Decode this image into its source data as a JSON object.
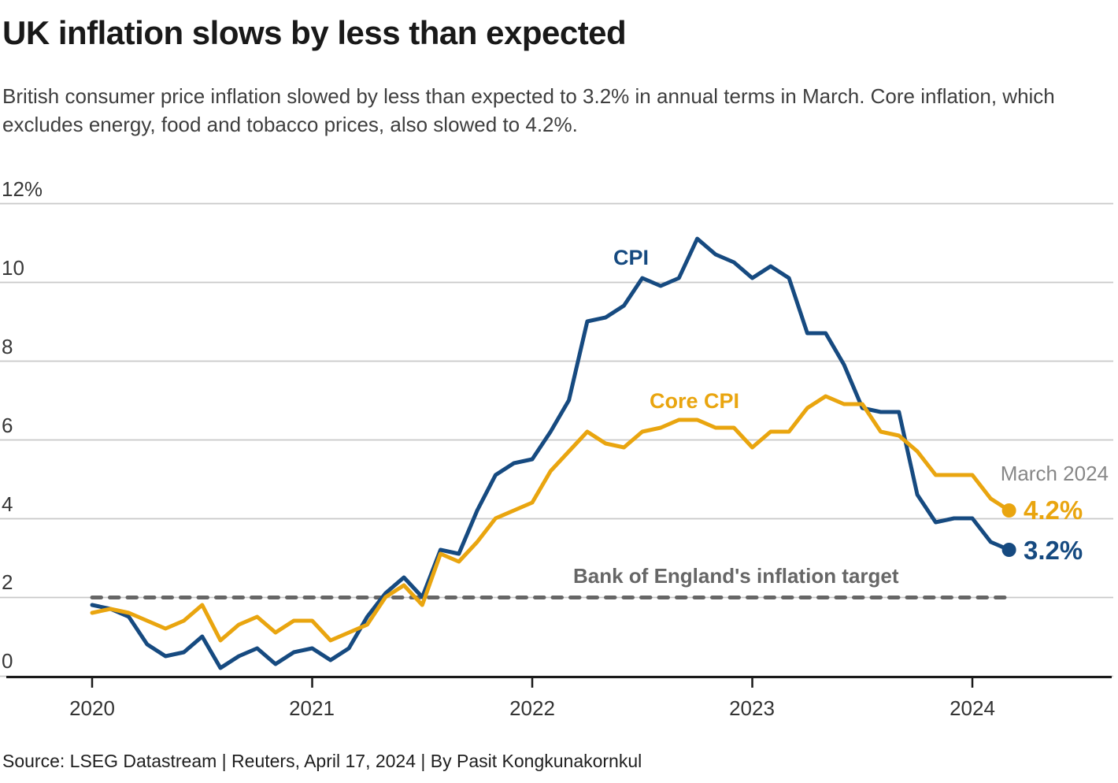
{
  "header": {
    "title": "UK inflation slows by less than expected",
    "subtitle": "British consumer price inflation slowed by less than expected to 3.2% in annual terms in March. Core inflation, which excludes energy, food and tobacco prices, also slowed to 4.2%."
  },
  "chart_data": {
    "type": "line",
    "title": "UK inflation slows by less than expected",
    "x_start": "2020-01",
    "x_end": "2024-03",
    "x_interval": "monthly",
    "x_tick_labels": [
      "2020",
      "2021",
      "2022",
      "2023",
      "2024"
    ],
    "y_tick_labels": [
      "12%",
      "10",
      "8",
      "6",
      "4",
      "2",
      "0"
    ],
    "y_tick_values": [
      12,
      10,
      8,
      6,
      4,
      2,
      0
    ],
    "ylim": [
      0,
      12
    ],
    "grid": "horizontal",
    "legend_position": "inline-labels",
    "series": [
      {
        "name": "CPI",
        "color": "#164A80",
        "values": [
          1.8,
          1.7,
          1.5,
          0.8,
          0.5,
          0.6,
          1.0,
          0.2,
          0.5,
          0.7,
          0.3,
          0.6,
          0.7,
          0.4,
          0.7,
          1.5,
          2.1,
          2.5,
          2.0,
          3.2,
          3.1,
          4.2,
          5.1,
          5.4,
          5.5,
          6.2,
          7.0,
          9.0,
          9.1,
          9.4,
          10.1,
          9.9,
          10.1,
          11.1,
          10.7,
          10.5,
          10.1,
          10.4,
          10.1,
          8.7,
          8.7,
          7.9,
          6.8,
          6.7,
          6.7,
          4.6,
          3.9,
          4.0,
          4.0,
          3.4,
          3.2
        ]
      },
      {
        "name": "Core CPI",
        "color": "#E9A50F",
        "values": [
          1.6,
          1.7,
          1.6,
          1.4,
          1.2,
          1.4,
          1.8,
          0.9,
          1.3,
          1.5,
          1.1,
          1.4,
          1.4,
          0.9,
          1.1,
          1.3,
          2.0,
          2.3,
          1.8,
          3.1,
          2.9,
          3.4,
          4.0,
          4.2,
          4.4,
          5.2,
          5.7,
          6.2,
          5.9,
          5.8,
          6.2,
          6.3,
          6.5,
          6.5,
          6.3,
          6.3,
          5.8,
          6.2,
          6.2,
          6.8,
          7.1,
          6.9,
          6.9,
          6.2,
          6.1,
          5.7,
          5.1,
          5.1,
          5.1,
          4.5,
          4.2
        ]
      }
    ],
    "target_line": {
      "label": "Bank of England's inflation target",
      "value": 2,
      "color": "#666666",
      "style": "dashed"
    },
    "annotations": {
      "date": "March 2024",
      "core_cpi_end": "4.2%",
      "cpi_end": "3.2%"
    }
  },
  "footer": {
    "source": "Source: LSEG Datastream | Reuters, April 17, 2024 | By Pasit Kongkunakornkul"
  }
}
